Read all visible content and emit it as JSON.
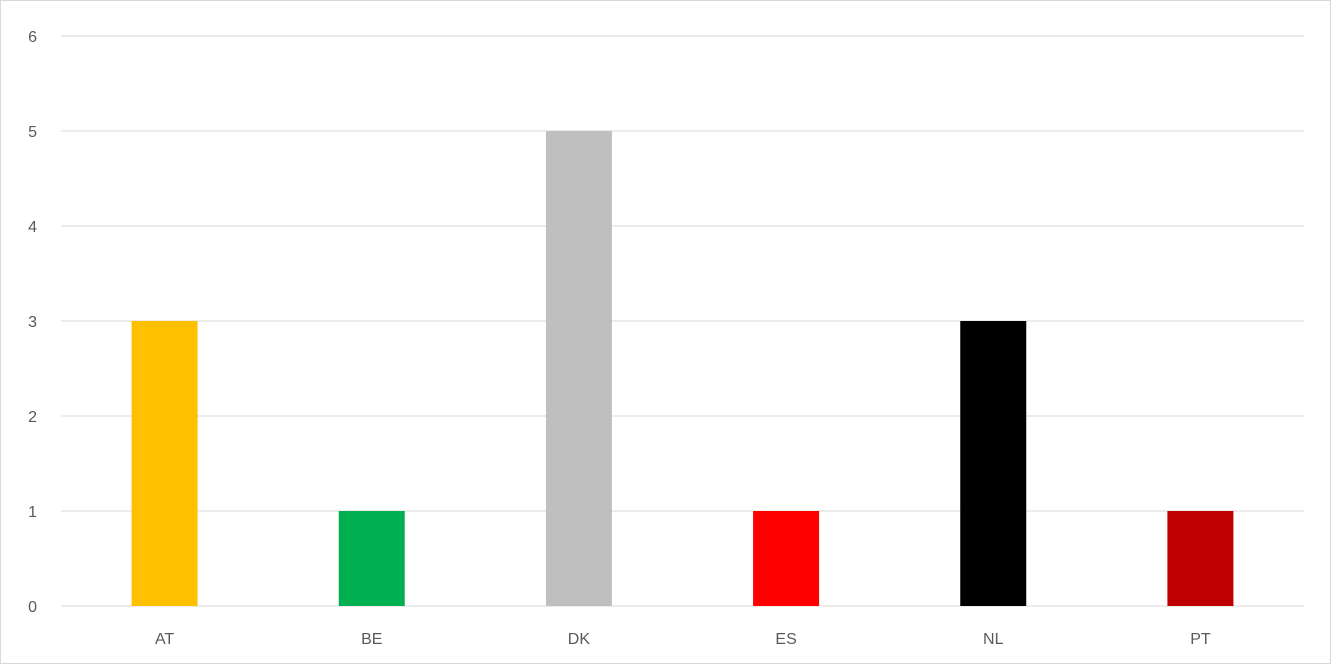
{
  "chart_data": {
    "type": "bar",
    "title": "",
    "xlabel": "",
    "ylabel": "",
    "categories": [
      "AT",
      "BE",
      "DK",
      "ES",
      "NL",
      "PT"
    ],
    "values": [
      3,
      1,
      5,
      1,
      3,
      1
    ],
    "bar_colors": [
      "#FFC000",
      "#00B050",
      "#BFBFBF",
      "#FF0000",
      "#000000",
      "#C00000"
    ],
    "ylim": [
      0,
      6
    ],
    "yticks": [
      0,
      1,
      2,
      3,
      4,
      5,
      6
    ],
    "grid": true,
    "legend": "none"
  }
}
